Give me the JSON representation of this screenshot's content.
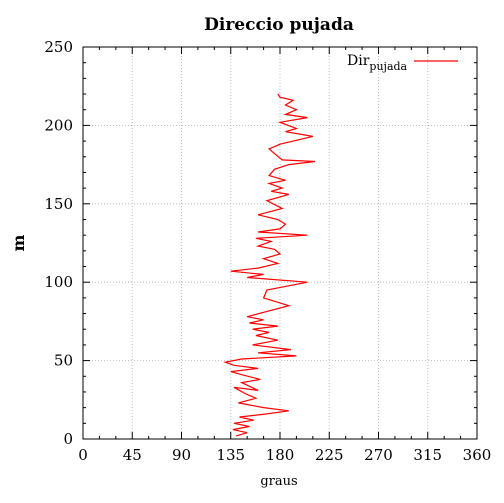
{
  "chart_data": {
    "type": "line",
    "title": "Direccio pujada",
    "xlabel": "graus",
    "ylabel": "m",
    "xlim": [
      0,
      360
    ],
    "ylim": [
      0,
      250
    ],
    "xticks": [
      0,
      45,
      90,
      135,
      180,
      225,
      270,
      315,
      360
    ],
    "yticks": [
      0,
      50,
      100,
      150,
      200,
      250
    ],
    "grid": true,
    "legend_position": "top-right",
    "series": [
      {
        "name_main": "Dir",
        "name_sub": "pujada",
        "color": "#ff0000",
        "points": [
          [
            140,
            2
          ],
          [
            150,
            4
          ],
          [
            137,
            6
          ],
          [
            152,
            8
          ],
          [
            138,
            10
          ],
          [
            156,
            12
          ],
          [
            143,
            14
          ],
          [
            168,
            16
          ],
          [
            188,
            18
          ],
          [
            165,
            20
          ],
          [
            142,
            23
          ],
          [
            158,
            26
          ],
          [
            148,
            29
          ],
          [
            138,
            33
          ],
          [
            160,
            31
          ],
          [
            145,
            36
          ],
          [
            162,
            38
          ],
          [
            145,
            41
          ],
          [
            135,
            43
          ],
          [
            160,
            45
          ],
          [
            138,
            47
          ],
          [
            130,
            49
          ],
          [
            145,
            51
          ],
          [
            195,
            53
          ],
          [
            160,
            55
          ],
          [
            190,
            57
          ],
          [
            155,
            60
          ],
          [
            178,
            63
          ],
          [
            158,
            66
          ],
          [
            170,
            68
          ],
          [
            155,
            70
          ],
          [
            178,
            72
          ],
          [
            152,
            74
          ],
          [
            165,
            76
          ],
          [
            150,
            78
          ],
          [
            188,
            85
          ],
          [
            165,
            90
          ],
          [
            168,
            95
          ],
          [
            205,
            100
          ],
          [
            150,
            103
          ],
          [
            165,
            105
          ],
          [
            135,
            107
          ],
          [
            160,
            109
          ],
          [
            178,
            112
          ],
          [
            165,
            115
          ],
          [
            180,
            118
          ],
          [
            175,
            121
          ],
          [
            160,
            123
          ],
          [
            172,
            126
          ],
          [
            158,
            128
          ],
          [
            205,
            130
          ],
          [
            160,
            132
          ],
          [
            180,
            134
          ],
          [
            185,
            137
          ],
          [
            178,
            140
          ],
          [
            160,
            143
          ],
          [
            182,
            147
          ],
          [
            168,
            152
          ],
          [
            188,
            156
          ],
          [
            172,
            158
          ],
          [
            182,
            160
          ],
          [
            170,
            163
          ],
          [
            185,
            165
          ],
          [
            170,
            168
          ],
          [
            175,
            172
          ],
          [
            188,
            175
          ],
          [
            212,
            177
          ],
          [
            182,
            178
          ],
          [
            175,
            182
          ],
          [
            170,
            185
          ],
          [
            180,
            188
          ],
          [
            210,
            193
          ],
          [
            185,
            196
          ],
          [
            195,
            198
          ],
          [
            180,
            202
          ],
          [
            205,
            205
          ],
          [
            185,
            207
          ],
          [
            195,
            210
          ],
          [
            185,
            213
          ],
          [
            192,
            216
          ],
          [
            180,
            218
          ],
          [
            178,
            220
          ]
        ]
      }
    ]
  }
}
